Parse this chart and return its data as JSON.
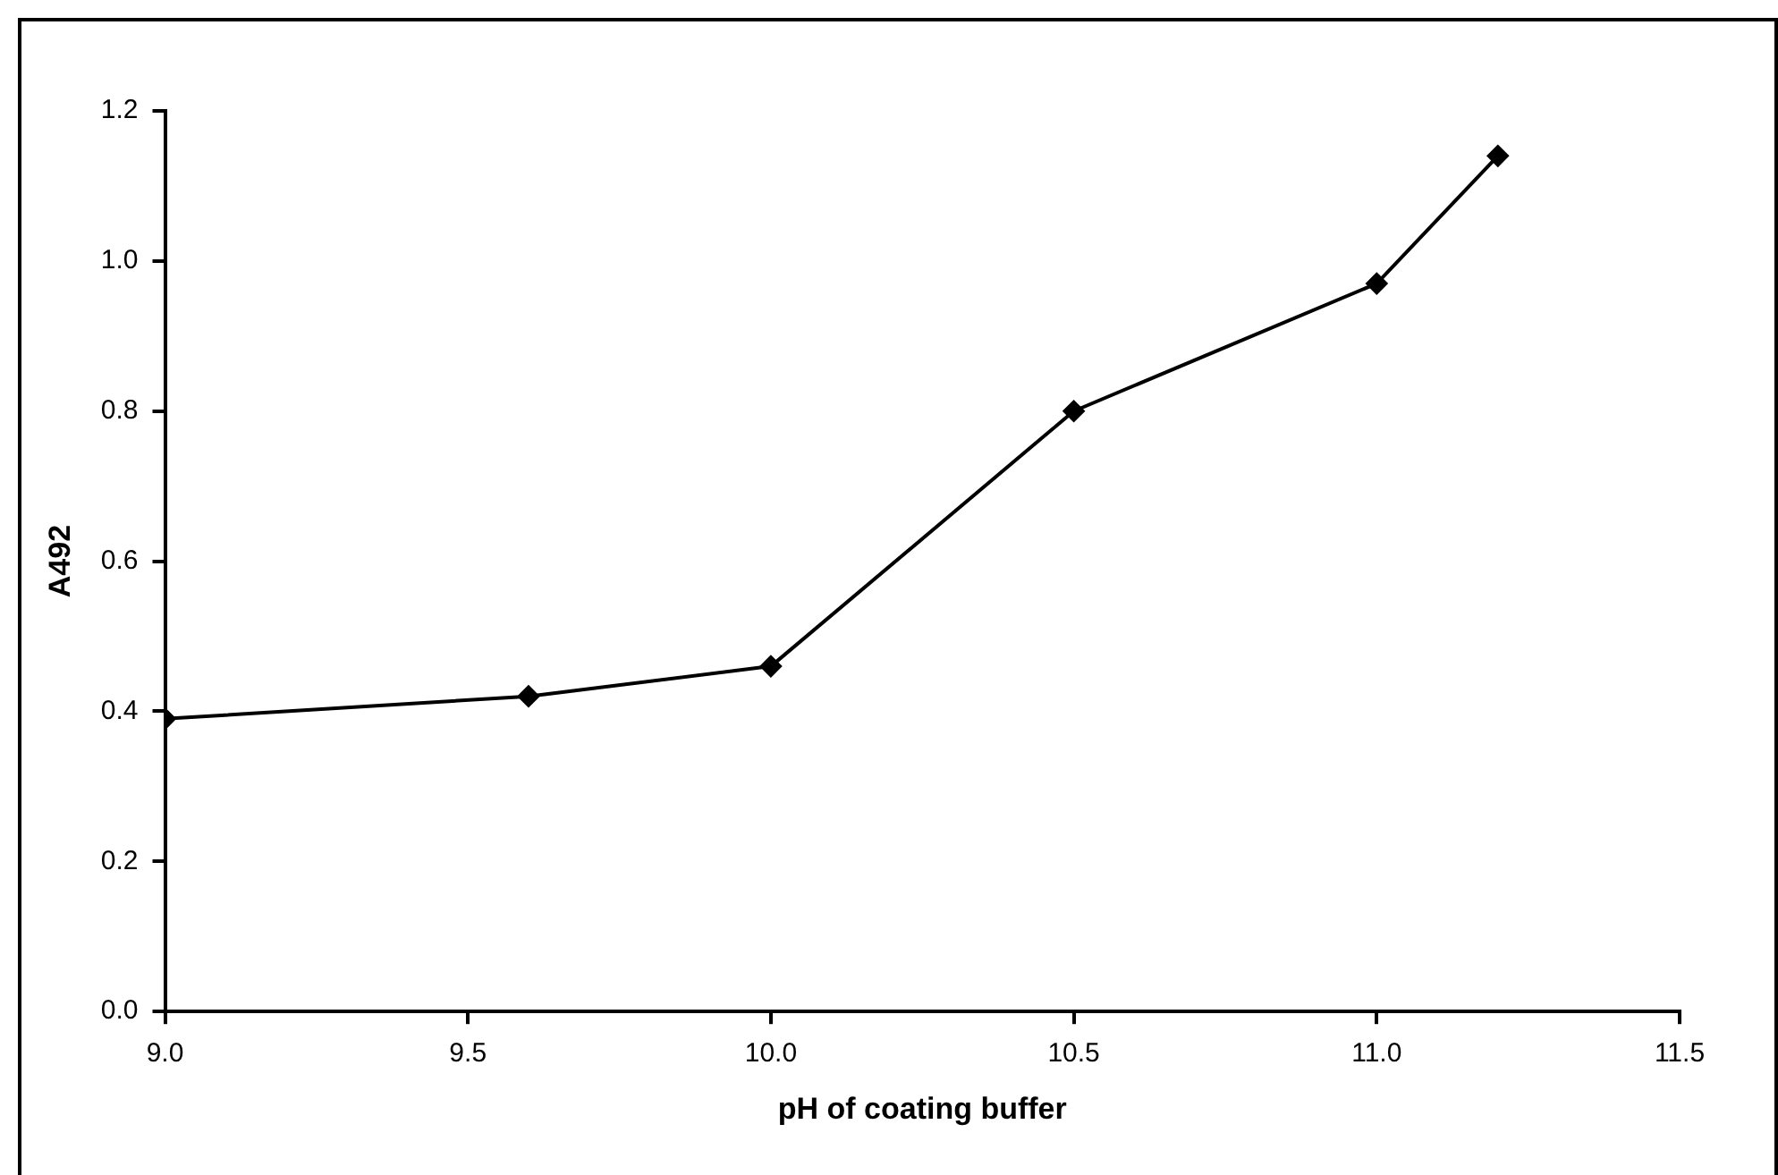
{
  "chart_data": {
    "type": "line",
    "xlabel": "pH of coating buffer",
    "ylabel": "A492",
    "x": [
      9.0,
      9.6,
      10.0,
      10.5,
      11.0,
      11.2
    ],
    "series": [
      {
        "color": "#000000",
        "values": [
          0.39,
          0.42,
          0.46,
          0.8,
          0.97,
          1.14
        ]
      }
    ],
    "xlim": [
      9.0,
      11.5
    ],
    "xticks": [
      {
        "value": 9.0,
        "label": "9.0"
      },
      {
        "value": 9.5,
        "label": "9.5"
      },
      {
        "value": 10.0,
        "label": "10.0"
      },
      {
        "value": 10.5,
        "label": "10.5"
      },
      {
        "value": 11.0,
        "label": "11.0"
      },
      {
        "value": 11.5,
        "label": "11.5"
      }
    ],
    "ylim": [
      0,
      1.2
    ],
    "yticks": [
      {
        "value": 0,
        "label": "0.0"
      },
      {
        "value": 0.2,
        "label": "0.2"
      },
      {
        "value": 0.4,
        "label": "0.4"
      },
      {
        "value": 0.6,
        "label": "0.6"
      },
      {
        "value": 0.8,
        "label": "0.8"
      },
      {
        "value": 1.0,
        "label": "1.0"
      },
      {
        "value": 1.2,
        "label": "1.2"
      }
    ],
    "grid": false,
    "legend": false,
    "marker": "diamond",
    "line_style": "solid"
  }
}
